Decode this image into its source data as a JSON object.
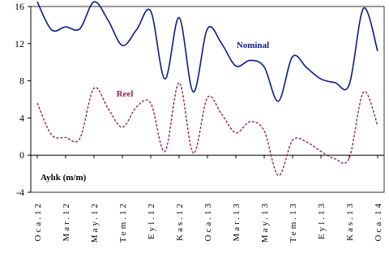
{
  "chart_data": {
    "type": "line",
    "title": "",
    "xlabel": "",
    "ylabel": "",
    "ylim": [
      -4,
      16
    ],
    "yticks": [
      -4,
      0,
      4,
      8,
      12,
      16
    ],
    "grid": false,
    "annotation": "Aylık (m/m)",
    "categories": [
      "Oca.12",
      "Mar.12",
      "May.12",
      "Tem.12",
      "Eyl.12",
      "Kas.12",
      "Oca.13",
      "Mar.13",
      "May.13",
      "Tem.13",
      "Eyl.13",
      "Kas.13",
      "Oca.14"
    ],
    "x": [
      0,
      1,
      2,
      3,
      4,
      5,
      6,
      7,
      8,
      9,
      10,
      11,
      12,
      13,
      14,
      15,
      16,
      17,
      18,
      19,
      20,
      21,
      22,
      23,
      24
    ],
    "series": [
      {
        "name": "Nominal",
        "color": "#0a1a8a",
        "dash": "solid",
        "values": [
          16.5,
          13.5,
          13.8,
          13.6,
          16.5,
          14.5,
          11.8,
          13.5,
          15.5,
          8.2,
          14.8,
          6.8,
          13.6,
          12.0,
          9.6,
          10.2,
          9.5,
          5.8,
          10.6,
          9.4,
          8.2,
          7.8,
          7.6,
          15.8,
          11.2
        ]
      },
      {
        "name": "Reel",
        "color": "#8e2458",
        "dash": "dashed",
        "values": [
          5.6,
          2.2,
          1.9,
          1.8,
          7.2,
          5.0,
          3.0,
          5.2,
          5.6,
          0.4,
          7.8,
          0.2,
          6.2,
          4.4,
          2.4,
          3.6,
          2.6,
          -2.2,
          1.6,
          1.4,
          0.4,
          -0.4,
          -0.3,
          6.8,
          3.2
        ]
      }
    ]
  }
}
